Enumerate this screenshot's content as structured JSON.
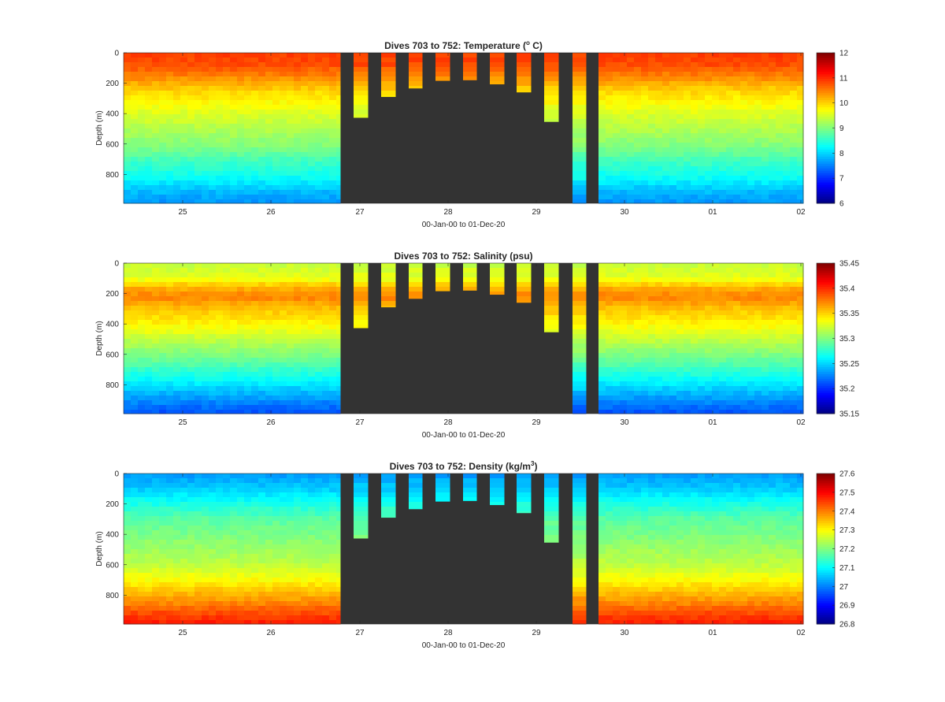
{
  "chart_data": [
    {
      "type": "heatmap",
      "title": "Dives 703 to 752: Temperature (",
      "title_sup": "o",
      "title_end": " C)",
      "xlabel": "00-Jan-00 to 01-Dec-20",
      "ylabel": "Depth (m)",
      "x_ticks": [
        "25",
        "26",
        "27",
        "28",
        "29",
        "30",
        "01",
        "02"
      ],
      "y_ticks": [
        "0",
        "200",
        "400",
        "600",
        "800"
      ],
      "ylim": [
        0,
        990
      ],
      "colorbar_ticks": [
        "6",
        "7",
        "8",
        "9",
        "10",
        "11",
        "12"
      ],
      "clim": [
        6,
        12
      ],
      "profile": [
        [
          0,
          10.9
        ],
        [
          80,
          10.8
        ],
        [
          150,
          10.5
        ],
        [
          250,
          10.0
        ],
        [
          380,
          9.6
        ],
        [
          500,
          9.3
        ],
        [
          620,
          9.0
        ],
        [
          720,
          8.6
        ],
        [
          820,
          8.3
        ],
        [
          900,
          7.9
        ],
        [
          990,
          7.6
        ]
      ],
      "nan_color": "#333333"
    },
    {
      "type": "heatmap",
      "title": "Dives 703 to 752: Salinity (psu)",
      "xlabel": "00-Jan-00 to 01-Dec-20",
      "ylabel": "Depth (m)",
      "x_ticks": [
        "25",
        "26",
        "27",
        "28",
        "29",
        "30",
        "01",
        "02"
      ],
      "y_ticks": [
        "0",
        "200",
        "400",
        "600",
        "800"
      ],
      "ylim": [
        0,
        990
      ],
      "colorbar_ticks": [
        "35.15",
        "35.2",
        "35.25",
        "35.3",
        "35.35",
        "35.4",
        "35.45"
      ],
      "clim": [
        35.15,
        35.45
      ],
      "profile": [
        [
          0,
          35.32
        ],
        [
          100,
          35.33
        ],
        [
          160,
          35.36
        ],
        [
          220,
          35.375
        ],
        [
          300,
          35.355
        ],
        [
          400,
          35.34
        ],
        [
          500,
          35.32
        ],
        [
          650,
          35.29
        ],
        [
          780,
          35.26
        ],
        [
          880,
          35.235
        ],
        [
          990,
          35.21
        ]
      ],
      "nan_color": "#333333"
    },
    {
      "type": "heatmap",
      "title": "Dives 703 to 752: Density (kg/m",
      "title_sup": "3",
      "title_end": ")",
      "xlabel": "00-Jan-00 to 01-Dec-20",
      "ylabel": "Depth (m)",
      "x_ticks": [
        "25",
        "26",
        "27",
        "28",
        "29",
        "30",
        "01",
        "02"
      ],
      "y_ticks": [
        "0",
        "200",
        "400",
        "600",
        "800"
      ],
      "ylim": [
        0,
        990
      ],
      "colorbar_ticks": [
        "26.8",
        "26.9",
        "27",
        "27.1",
        "27.2",
        "27.3",
        "27.4",
        "27.5",
        "27.6"
      ],
      "clim": [
        26.8,
        27.6
      ],
      "profile": [
        [
          0,
          27.02
        ],
        [
          100,
          27.06
        ],
        [
          200,
          27.12
        ],
        [
          300,
          27.17
        ],
        [
          450,
          27.21
        ],
        [
          600,
          27.25
        ],
        [
          700,
          27.3
        ],
        [
          780,
          27.35
        ],
        [
          860,
          27.4
        ],
        [
          930,
          27.45
        ],
        [
          990,
          27.48
        ]
      ],
      "nan_color": "#333333"
    }
  ]
}
